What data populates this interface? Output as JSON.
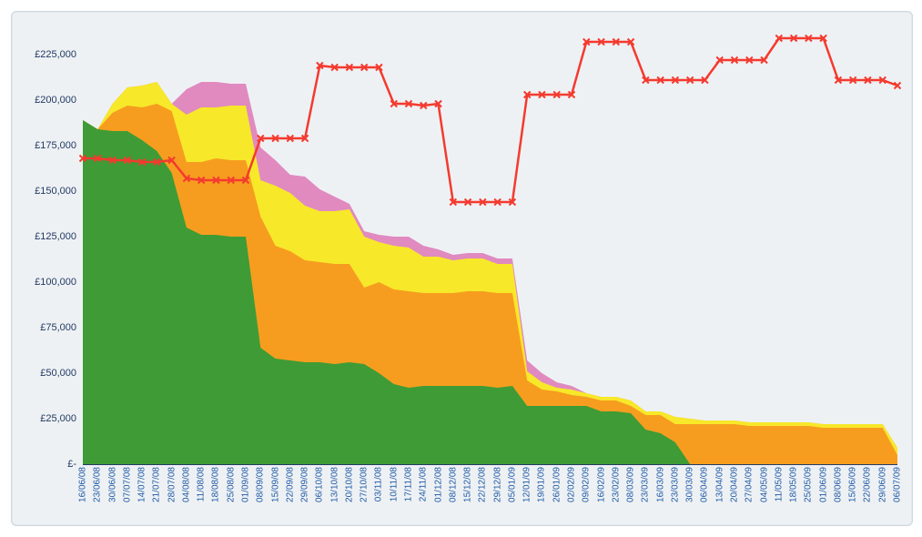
{
  "chart": {
    "type": "stacked-area-with-line",
    "background_color": "#eef1f4",
    "border_color": "#cfd6dd",
    "grid_color": "#223a63",
    "y_axis": {
      "min": 0,
      "max": 237500,
      "tick_step": 25000,
      "ticks": [
        0,
        25000,
        50000,
        75000,
        100000,
        125000,
        150000,
        175000,
        200000,
        225000
      ],
      "labels": [
        "£-",
        "£25,000",
        "£50,000",
        "£75,000",
        "£100,000",
        "£125,000",
        "£150,000",
        "£175,000",
        "£200,000",
        "£225,000"
      ],
      "label_color": "#223a63",
      "label_fontsize": 11
    },
    "x_axis": {
      "categories": [
        "16/06/08",
        "23/06/08",
        "30/06/08",
        "07/07/08",
        "14/07/08",
        "21/07/08",
        "28/07/08",
        "04/08/08",
        "11/08/08",
        "18/08/08",
        "25/08/08",
        "01/09/08",
        "08/09/08",
        "15/09/08",
        "22/09/08",
        "29/09/08",
        "06/10/08",
        "13/10/08",
        "20/10/08",
        "27/10/08",
        "03/11/08",
        "10/11/08",
        "17/11/08",
        "24/11/08",
        "01/12/08",
        "08/12/08",
        "15/12/08",
        "22/12/08",
        "29/12/08",
        "05/01/09",
        "12/01/09",
        "19/01/09",
        "26/01/09",
        "02/02/09",
        "09/02/09",
        "16/02/09",
        "23/02/09",
        "08/03/09",
        "23/03/09",
        "16/03/09",
        "23/03/09",
        "30/03/09",
        "06/04/09",
        "13/04/09",
        "20/04/09",
        "27/04/09",
        "04/05/09",
        "11/05/09",
        "18/05/09",
        "25/05/09",
        "01/06/09",
        "08/06/09",
        "15/06/09",
        "22/06/09",
        "29/06/09",
        "06/07/09"
      ],
      "label_color": "#1f5aa6",
      "label_fontsize": 10,
      "rotation": -90
    },
    "stacked_series": [
      {
        "name": "series-green",
        "color": "#3f9b35",
        "values": [
          189000,
          184000,
          183000,
          183000,
          178000,
          172000,
          160000,
          130000,
          126000,
          126000,
          125000,
          125000,
          64000,
          58000,
          57000,
          56000,
          56000,
          55000,
          56000,
          55000,
          50000,
          44000,
          42000,
          43000,
          43000,
          43000,
          43000,
          43000,
          42000,
          43000,
          32000,
          32000,
          32000,
          32000,
          32000,
          29000,
          29000,
          28000,
          19000,
          17000,
          12000,
          0,
          0,
          0,
          0,
          0,
          0,
          0,
          0,
          0,
          0,
          0,
          0,
          0,
          0,
          0
        ]
      },
      {
        "name": "series-orange",
        "color": "#f69d1f",
        "values": [
          0,
          0,
          10000,
          14000,
          18000,
          26000,
          34000,
          36000,
          40000,
          42000,
          42000,
          42000,
          72000,
          62000,
          60000,
          56000,
          55000,
          55000,
          54000,
          42000,
          50000,
          52000,
          53000,
          51000,
          51000,
          51000,
          52000,
          52000,
          52000,
          51000,
          14000,
          9000,
          8000,
          6000,
          5000,
          6000,
          6000,
          4000,
          8000,
          10000,
          10000,
          22000,
          22000,
          22000,
          22000,
          21000,
          21000,
          21000,
          21000,
          21000,
          20000,
          20000,
          20000,
          20000,
          20000,
          5000
        ]
      },
      {
        "name": "series-yellow",
        "color": "#f7e82a",
        "values": [
          0,
          0,
          5000,
          10000,
          12000,
          12000,
          4000,
          26000,
          30000,
          28000,
          30000,
          30000,
          20000,
          33000,
          32000,
          30000,
          28000,
          29000,
          30000,
          28000,
          22000,
          24000,
          24000,
          20000,
          20000,
          18000,
          18000,
          18000,
          16000,
          16000,
          5000,
          4000,
          2000,
          3000,
          2000,
          2000,
          2000,
          3000,
          2000,
          2000,
          4000,
          3000,
          2000,
          2000,
          2000,
          2000,
          2000,
          2000,
          2000,
          2000,
          2000,
          2000,
          2000,
          2000,
          2000,
          4000
        ]
      },
      {
        "name": "series-pink",
        "color": "#e08ac0",
        "values": [
          0,
          0,
          0,
          0,
          0,
          0,
          0,
          14000,
          14000,
          14000,
          12000,
          12000,
          18000,
          14000,
          10000,
          16000,
          12000,
          8000,
          3000,
          3000,
          4000,
          5000,
          6000,
          6000,
          4000,
          3000,
          3000,
          3000,
          3000,
          3000,
          6000,
          5000,
          3000,
          2000,
          0,
          0,
          0,
          0,
          0,
          0,
          0,
          0,
          0,
          0,
          0,
          0,
          0,
          0,
          0,
          0,
          0,
          0,
          0,
          0,
          0,
          0
        ]
      }
    ],
    "line_series": {
      "name": "series-red-line",
      "color": "#f43a2f",
      "marker": "x",
      "marker_size": 7,
      "line_width": 2.5,
      "values": [
        168000,
        168000,
        167000,
        167000,
        166000,
        166000,
        167000,
        157000,
        156000,
        156000,
        156000,
        156000,
        179000,
        179000,
        179000,
        179000,
        219000,
        218000,
        218000,
        218000,
        218000,
        198000,
        198000,
        197000,
        198000,
        144000,
        144000,
        144000,
        144000,
        144000,
        203000,
        203000,
        203000,
        203000,
        232000,
        232000,
        232000,
        232000,
        211000,
        211000,
        211000,
        211000,
        211000,
        222000,
        222000,
        222000,
        222000,
        234000,
        234000,
        234000,
        234000,
        211000,
        211000,
        211000,
        211000,
        208000
      ]
    }
  }
}
